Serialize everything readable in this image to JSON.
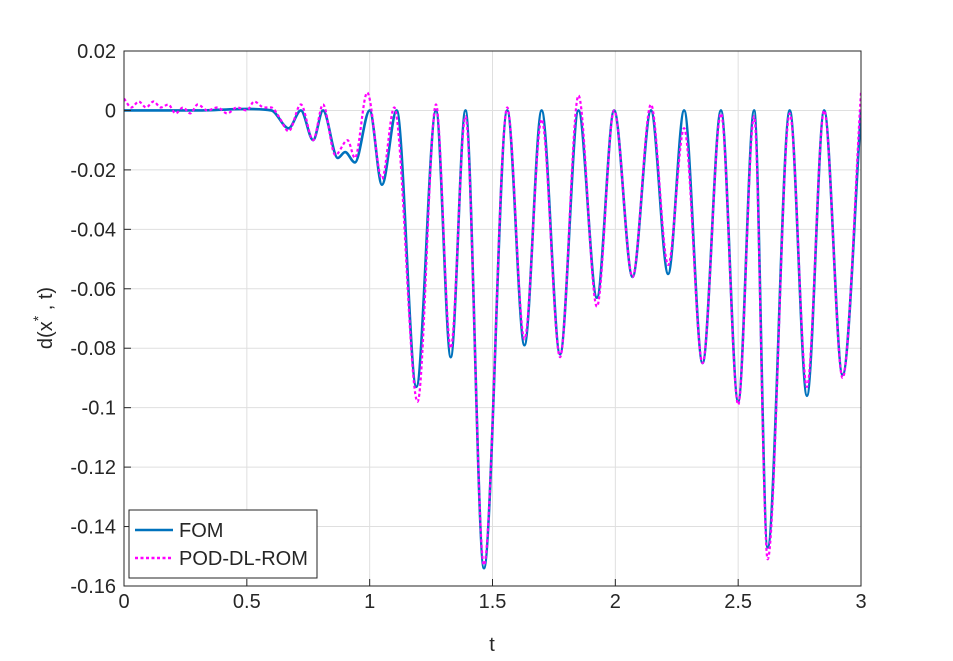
{
  "chart_data": {
    "type": "line",
    "xlabel": "t",
    "ylabel": [
      "d(x",
      "*",
      " , t)"
    ],
    "xlim": [
      0,
      3
    ],
    "xticks": [
      0,
      0.5,
      1,
      1.5,
      2,
      2.5,
      3
    ],
    "ylim": [
      -0.16,
      0.02
    ],
    "yticks": [
      -0.16,
      -0.14,
      -0.12,
      -0.1,
      -0.08,
      -0.06,
      -0.04,
      -0.02,
      0,
      0.02
    ],
    "grid": true,
    "legend": "southwest",
    "series": [
      {
        "name": "FOM",
        "color": "#0072bd",
        "style": "solid",
        "x": [
          0,
          0.3,
          0.5,
          0.6,
          0.67,
          0.72,
          0.77,
          0.81,
          0.87,
          0.9,
          0.94,
          1.0,
          1.05,
          1.11,
          1.19,
          1.27,
          1.33,
          1.39,
          1.465,
          1.56,
          1.63,
          1.7,
          1.775,
          1.85,
          1.925,
          1.995,
          2.07,
          2.145,
          2.215,
          2.28,
          2.355,
          2.43,
          2.5,
          2.565,
          2.62,
          2.71,
          2.78,
          2.85,
          2.925,
          3
        ],
        "values": [
          0,
          0,
          0.0005,
          0,
          -0.006,
          0,
          -0.01,
          0,
          -0.016,
          -0.014,
          -0.0175,
          0,
          -0.025,
          0,
          -0.093,
          0,
          -0.083,
          0,
          -0.154,
          0,
          -0.079,
          0,
          -0.082,
          0,
          -0.063,
          0,
          -0.056,
          0,
          -0.055,
          0,
          -0.085,
          0,
          -0.098,
          0,
          -0.147,
          0,
          -0.096,
          0,
          -0.089,
          0
        ]
      },
      {
        "name": "POD-DL-ROM",
        "color": "#ff00ff",
        "style": "dotted",
        "x": [
          0,
          0.03,
          0.06,
          0.09,
          0.12,
          0.15,
          0.18,
          0.21,
          0.24,
          0.27,
          0.3,
          0.34,
          0.38,
          0.42,
          0.46,
          0.5,
          0.53,
          0.57,
          0.6,
          0.63,
          0.67,
          0.72,
          0.77,
          0.81,
          0.86,
          0.91,
          0.94,
          0.99,
          1.05,
          1.1,
          1.195,
          1.27,
          1.33,
          1.39,
          1.465,
          1.56,
          1.63,
          1.7,
          1.775,
          1.85,
          1.925,
          1.995,
          2.07,
          2.145,
          2.215,
          2.28,
          2.355,
          2.43,
          2.5,
          2.565,
          2.62,
          2.71,
          2.78,
          2.85,
          2.925,
          3
        ],
        "values": [
          0.004,
          0.001,
          0.003,
          0.001,
          0.003,
          0.001,
          0.002,
          -0.001,
          0.001,
          -0.001,
          0.002,
          0,
          0.001,
          -0.001,
          0.001,
          0,
          0.003,
          0.001,
          0.001,
          -0.002,
          -0.007,
          0.002,
          -0.01,
          0.002,
          -0.015,
          -0.01,
          -0.016,
          0.006,
          -0.023,
          0.001,
          -0.098,
          0.002,
          -0.08,
          -0.002,
          -0.153,
          0.001,
          -0.077,
          -0.003,
          -0.083,
          0.005,
          -0.066,
          0,
          -0.056,
          0.002,
          -0.052,
          -0.006,
          -0.085,
          -0.001,
          -0.099,
          -0.002,
          -0.151,
          -0.001,
          -0.093,
          0,
          -0.09,
          0.006
        ]
      }
    ]
  }
}
